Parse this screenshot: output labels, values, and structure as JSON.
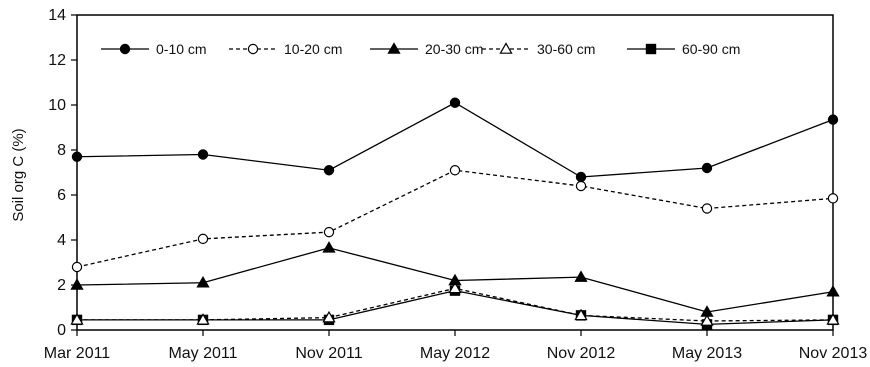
{
  "chart_data": {
    "type": "line",
    "ylabel": "Soil org C (%)",
    "xlabel": "",
    "categories": [
      "Mar 2011",
      "May 2011",
      "Nov 2011",
      "May 2012",
      "Nov 2012",
      "May 2013",
      "Nov 2013"
    ],
    "ylim": [
      0,
      14
    ],
    "yticks": [
      0,
      2,
      4,
      6,
      8,
      10,
      12,
      14
    ],
    "grid": false,
    "legend_position": "top",
    "series": [
      {
        "name": "0-10 cm",
        "marker": "circle-filled",
        "dash": "solid",
        "values": [
          7.7,
          7.8,
          7.1,
          10.1,
          6.8,
          7.2,
          9.35
        ]
      },
      {
        "name": "10-20 cm",
        "marker": "circle-open",
        "dash": "dashed",
        "values": [
          2.8,
          4.05,
          4.35,
          7.1,
          6.4,
          5.4,
          5.85
        ]
      },
      {
        "name": "20-30 cm",
        "marker": "triangle-filled",
        "dash": "solid",
        "values": [
          2.0,
          2.1,
          3.65,
          2.2,
          2.35,
          0.8,
          1.7
        ]
      },
      {
        "name": "30-60 cm",
        "marker": "triangle-open",
        "dash": "dashed",
        "values": [
          0.45,
          0.45,
          0.55,
          1.85,
          0.65,
          0.4,
          0.45
        ]
      },
      {
        "name": "60-90 cm",
        "marker": "square-filled",
        "dash": "solid",
        "values": [
          0.45,
          0.45,
          0.45,
          1.75,
          0.65,
          0.25,
          0.45
        ]
      }
    ]
  }
}
